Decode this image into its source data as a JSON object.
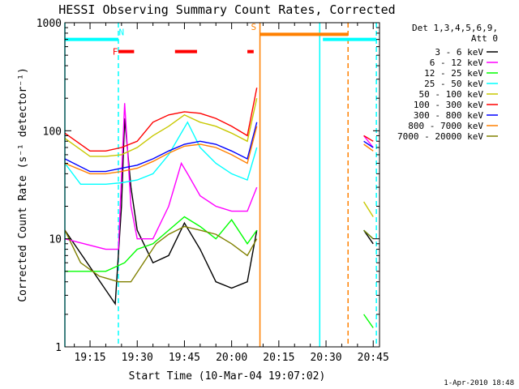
{
  "chart_data": {
    "type": "line",
    "title": "HESSI Observing Summary Count Rates, Corrected",
    "xlabel": "Start Time (10-Mar-04 19:07:02)",
    "ylabel": "Corrected Count Rate (s⁻¹ detector⁻¹)",
    "yscale": "log",
    "ylim": [
      1,
      1000
    ],
    "xlim": [
      "19:07",
      "20:47"
    ],
    "x_ticks": [
      "19:15",
      "19:30",
      "19:45",
      "20:00",
      "20:15",
      "20:30",
      "20:45"
    ],
    "y_ticks": [
      "1",
      "10",
      "100",
      "1000"
    ],
    "legend": {
      "title": "Det 1,3,4,5,6,9,",
      "subtitle": "Att 0",
      "placement": "right"
    },
    "timestamp": "1-Apr-2010 18:48",
    "series": [
      {
        "name": "3 - 6 keV",
        "color": "#000000",
        "x": [
          "19:07",
          "19:23",
          "19:25",
          "19:26",
          "19:28",
          "19:30",
          "19:35",
          "19:40",
          "19:45",
          "19:50",
          "19:55",
          "20:00",
          "20:05",
          "20:08",
          "20:38",
          "20:42",
          "20:45"
        ],
        "y": [
          12,
          2.5,
          20,
          130,
          30,
          12,
          6,
          7,
          14,
          8,
          4,
          3.5,
          4,
          12,
          null,
          12,
          9
        ]
      },
      {
        "name": "6 - 12 keV",
        "color": "#ff00ff",
        "x": [
          "19:07",
          "19:20",
          "19:24",
          "19:26",
          "19:28",
          "19:30",
          "19:35",
          "19:40",
          "19:44",
          "19:46",
          "19:50",
          "19:55",
          "20:00",
          "20:05",
          "20:08",
          "20:38",
          "20:42",
          "20:45"
        ],
        "y": [
          10,
          8,
          8,
          180,
          20,
          10,
          10,
          20,
          50,
          40,
          25,
          20,
          18,
          18,
          30,
          null,
          90,
          70
        ]
      },
      {
        "name": "12 - 25 keV",
        "color": "#00ff00",
        "x": [
          "19:07",
          "19:20",
          "19:26",
          "19:30",
          "19:35",
          "19:40",
          "19:45",
          "19:50",
          "19:55",
          "20:00",
          "20:05",
          "20:08",
          "20:38",
          "20:42",
          "20:45"
        ],
        "y": [
          5,
          5,
          6,
          8,
          9,
          12,
          16,
          13,
          10,
          15,
          9,
          12,
          null,
          2,
          1.5
        ]
      },
      {
        "name": "25 - 50 keV",
        "color": "#00ffff",
        "x": [
          "19:07",
          "19:12",
          "19:20",
          "19:25",
          "19:30",
          "19:35",
          "19:40",
          "19:46",
          "19:50",
          "19:55",
          "20:00",
          "20:05",
          "20:08",
          "20:38",
          "20:42",
          "20:45"
        ],
        "y": [
          50,
          32,
          32,
          33,
          35,
          40,
          60,
          120,
          70,
          50,
          40,
          35,
          70,
          null,
          12,
          10
        ]
      },
      {
        "name": "50 - 100 keV",
        "color": "#c8c800",
        "x": [
          "19:07",
          "19:15",
          "19:20",
          "19:25",
          "19:30",
          "19:35",
          "19:40",
          "19:45",
          "19:50",
          "19:55",
          "20:00",
          "20:05",
          "20:08",
          "20:38",
          "20:42",
          "20:45"
        ],
        "y": [
          85,
          58,
          58,
          60,
          70,
          90,
          110,
          140,
          120,
          110,
          95,
          80,
          200,
          null,
          22,
          16
        ]
      },
      {
        "name": "100 - 300 keV",
        "color": "#ff0000",
        "x": [
          "19:07",
          "19:15",
          "19:20",
          "19:25",
          "19:30",
          "19:35",
          "19:40",
          "19:45",
          "19:50",
          "19:55",
          "20:00",
          "20:05",
          "20:08",
          "20:38",
          "20:42",
          "20:45"
        ],
        "y": [
          95,
          65,
          65,
          70,
          80,
          120,
          140,
          150,
          145,
          130,
          110,
          90,
          250,
          null,
          90,
          80
        ]
      },
      {
        "name": "300 - 800 keV",
        "color": "#0000ff",
        "x": [
          "19:07",
          "19:15",
          "19:20",
          "19:25",
          "19:30",
          "19:35",
          "19:40",
          "19:45",
          "19:50",
          "19:55",
          "20:00",
          "20:05",
          "20:08",
          "20:38",
          "20:42",
          "20:45"
        ],
        "y": [
          55,
          42,
          42,
          45,
          48,
          55,
          65,
          75,
          80,
          75,
          65,
          55,
          120,
          null,
          80,
          70
        ]
      },
      {
        "name": "800 - 7000 keV",
        "color": "#ff8000",
        "x": [
          "19:07",
          "19:15",
          "19:20",
          "19:25",
          "19:30",
          "19:35",
          "19:40",
          "19:45",
          "19:50",
          "19:55",
          "20:00",
          "20:05",
          "20:08",
          "20:38",
          "20:42",
          "20:45"
        ],
        "y": [
          50,
          40,
          40,
          42,
          45,
          52,
          62,
          72,
          75,
          70,
          60,
          50,
          110,
          null,
          75,
          65
        ]
      },
      {
        "name": "7000 - 20000 keV",
        "color": "#808000",
        "x": [
          "19:07",
          "19:12",
          "19:18",
          "19:24",
          "19:28",
          "19:32",
          "19:36",
          "19:40",
          "19:45",
          "19:50",
          "19:55",
          "20:00",
          "20:05",
          "20:08",
          "20:38",
          "20:42",
          "20:45"
        ],
        "y": [
          12,
          6,
          4.5,
          4,
          4,
          6,
          9,
          11,
          13,
          12,
          11,
          9,
          7,
          10,
          null,
          12,
          10
        ]
      }
    ],
    "attenuator_bars": [
      {
        "color": "#00ffff",
        "start": "19:07",
        "end": "19:24",
        "level": 700
      },
      {
        "color": "#ff8000",
        "start": "20:09",
        "end": "20:37",
        "level": 780
      },
      {
        "color": "#00ffff",
        "start": "20:29",
        "end": "20:46",
        "level": 700
      }
    ],
    "flag_bars": [
      {
        "color": "#ff0000",
        "start": "19:24",
        "end": "19:29",
        "level": 540
      },
      {
        "color": "#ff0000",
        "start": "19:42",
        "end": "19:49",
        "level": 540
      },
      {
        "color": "#ff0000",
        "start": "20:05",
        "end": "20:07",
        "level": 540
      }
    ],
    "vertical_markers": [
      {
        "time": "19:07",
        "color": "#00ffff",
        "style": "solid"
      },
      {
        "time": "19:24",
        "color": "#00ffff",
        "style": "dashed"
      },
      {
        "time": "20:09",
        "color": "#ff8000",
        "style": "solid"
      },
      {
        "time": "20:28",
        "color": "#00ffff",
        "style": "solid"
      },
      {
        "time": "20:37",
        "color": "#ff8000",
        "style": "dashed"
      },
      {
        "time": "20:46",
        "color": "#00ffff",
        "style": "dashed"
      }
    ],
    "annotations": [
      {
        "text": "F",
        "time": "19:23",
        "level": 540,
        "color": "#ff0000"
      },
      {
        "text": "N",
        "time": "19:25",
        "level": 820,
        "color": "#00ffff"
      },
      {
        "text": "S",
        "time": "20:07",
        "level": 920,
        "color": "#ff8000"
      }
    ]
  }
}
